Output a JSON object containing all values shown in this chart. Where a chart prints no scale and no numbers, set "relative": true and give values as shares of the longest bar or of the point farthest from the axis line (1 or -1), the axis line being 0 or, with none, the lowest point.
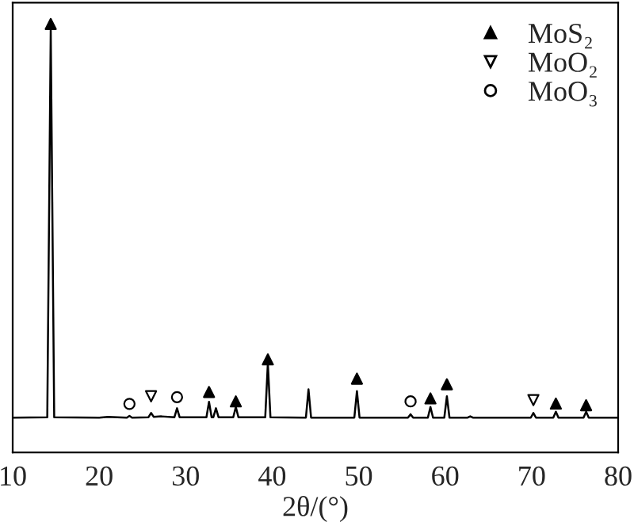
{
  "chart_data": {
    "type": "line",
    "relative": true,
    "xlabel": "2θ/(°)",
    "x": [
      10,
      14.0,
      14.4,
      14.8,
      20,
      21,
      23.2,
      23.5,
      23.8,
      25.7,
      26.0,
      26.3,
      27.2,
      28.7,
      29.0,
      29.3,
      32.4,
      32.7,
      33.0,
      33.2,
      33.5,
      33.8,
      35.5,
      35.8,
      36.1,
      39.2,
      39.5,
      39.8,
      43.9,
      44.2,
      44.5,
      49.5,
      49.8,
      50.1,
      55.7,
      56.0,
      56.3,
      58.0,
      58.3,
      58.6,
      59.9,
      60.2,
      60.5,
      62.6,
      62.9,
      63.2,
      69.9,
      70.2,
      70.5,
      72.5,
      72.8,
      73.1,
      76.0,
      76.3,
      76.6,
      80
    ],
    "tick_labels": "x",
    "xlim": [
      10,
      80
    ],
    "xticks": [
      10,
      20,
      30,
      40,
      50,
      60,
      70,
      80
    ],
    "grid": false,
    "legend": "top right",
    "series": [
      {
        "color": "#000000",
        "marker": "none",
        "values": [
          0.081,
          0.082,
          0.985,
          0.082,
          0.081,
          0.083,
          0.081,
          0.085,
          0.081,
          0.082,
          0.092,
          0.083,
          0.084,
          0.082,
          0.103,
          0.082,
          0.082,
          0.118,
          0.082,
          0.082,
          0.103,
          0.082,
          0.082,
          0.106,
          0.082,
          0.082,
          0.208,
          0.082,
          0.081,
          0.147,
          0.081,
          0.081,
          0.143,
          0.081,
          0.081,
          0.089,
          0.081,
          0.081,
          0.106,
          0.081,
          0.081,
          0.131,
          0.081,
          0.081,
          0.084,
          0.081,
          0.081,
          0.092,
          0.081,
          0.081,
          0.095,
          0.081,
          0.081,
          0.095,
          0.081,
          0.081
        ]
      },
      {
        "type": "scatter",
        "name": "MoS₂",
        "color": "#000000",
        "marker": "triangle",
        "x": [
          14.4,
          32.7,
          35.8,
          39.5,
          49.8,
          58.3,
          60.2,
          72.8,
          76.3
        ],
        "values": [
          1,
          0.141,
          0.119,
          0.217,
          0.172,
          0.126,
          0.159,
          0.114,
          0.11
        ]
      },
      {
        "type": "scatter",
        "name": "MoO₂",
        "color": "#000000",
        "marker": "triangle_down",
        "x": [
          26.0,
          70.2
        ],
        "values": [
          0.131,
          0.122
        ]
      },
      {
        "type": "scatter",
        "name": "MoO₃",
        "color": "#000000",
        "marker": "circle",
        "x": [
          23.5,
          29.0,
          56.0
        ],
        "values": [
          0.113,
          0.129,
          0.119
        ]
      }
    ]
  }
}
